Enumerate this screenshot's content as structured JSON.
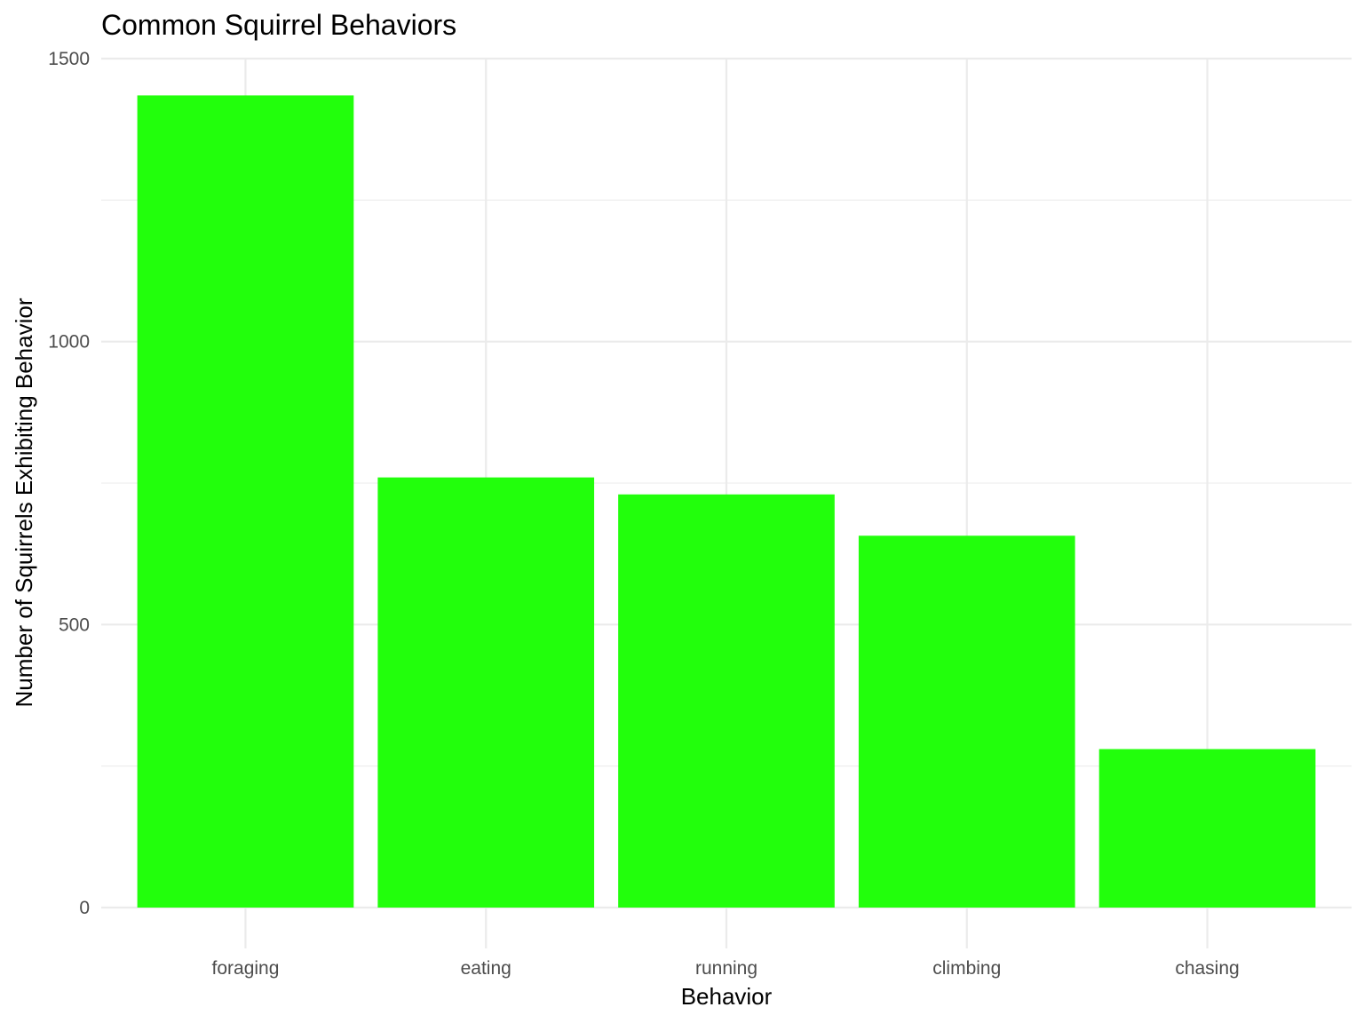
{
  "chart_data": {
    "type": "bar",
    "title": "Common Squirrel Behaviors",
    "xlabel": "Behavior",
    "ylabel": "Number of Squirrels Exhibiting Behavior",
    "categories": [
      "foraging",
      "eating",
      "running",
      "climbing",
      "chasing"
    ],
    "values": [
      1435,
      760,
      730,
      657,
      280
    ],
    "ylim": [
      0,
      1500
    ],
    "yticks": [
      0,
      500,
      1000,
      1500
    ],
    "grid": true,
    "bar_color": "#22ff0c",
    "grid_color": "#ebebeb"
  }
}
